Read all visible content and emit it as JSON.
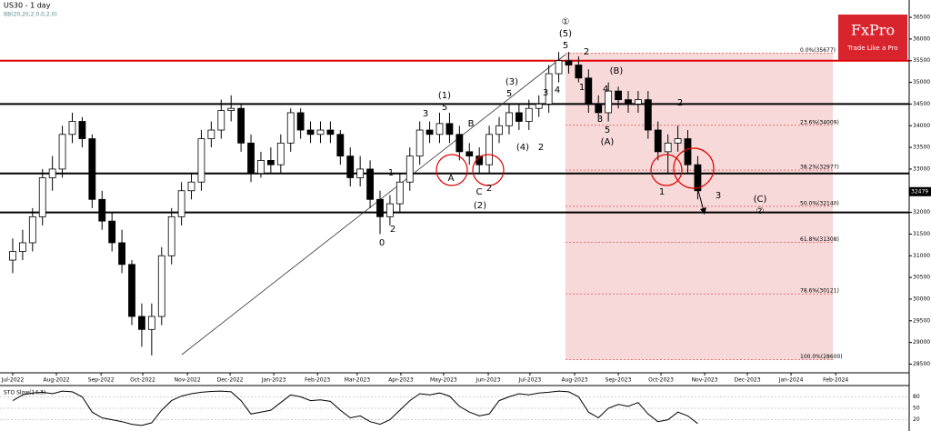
{
  "chart_data": {
    "type": "candlestick",
    "title": "US30 - 1 day",
    "indicator_label": "BB(20,20,2.0,0,2.0)",
    "brand": "FxPro",
    "brand_tagline": "Trade Like a Pro",
    "xlim": [
      -1.28,
      90.3
    ],
    "xticks": [
      {
        "value": 0,
        "label": "Jul-2022"
      },
      {
        "value": 4.4,
        "label": "Aug-2022"
      },
      {
        "value": 8.9,
        "label": "Sep-2022"
      },
      {
        "value": 13.1,
        "label": "Oct-2022"
      },
      {
        "value": 17.6,
        "label": "Nov-2022"
      },
      {
        "value": 21.9,
        "label": "Dec-2022"
      },
      {
        "value": 26.3,
        "label": "Jan-2023"
      },
      {
        "value": 30.7,
        "label": "Feb-2023"
      },
      {
        "value": 34.7,
        "label": "Mar-2023"
      },
      {
        "value": 39.1,
        "label": "Apr-2023"
      },
      {
        "value": 43.4,
        "label": "May-2023"
      },
      {
        "value": 47.9,
        "label": "Jun-2023"
      },
      {
        "value": 52.1,
        "label": "Jul-2023"
      },
      {
        "value": 56.6,
        "label": "Aug-2023"
      },
      {
        "value": 61,
        "label": "Sep-2023"
      },
      {
        "value": 65.3,
        "label": "Oct-2023"
      },
      {
        "value": 69.7,
        "label": "Nov-2023"
      },
      {
        "value": 74,
        "label": "Dec-2023"
      },
      {
        "value": 78.4,
        "label": "Jan-2024"
      },
      {
        "value": 82.9,
        "label": "Feb-2024"
      }
    ],
    "ylim": [
      28300,
      36900
    ],
    "yticks": [
      28500,
      29000,
      29500,
      30000,
      30500,
      31000,
      31500,
      32000,
      32500,
      33000,
      33500,
      34000,
      34500,
      35000,
      35500,
      36000,
      36500
    ],
    "last_price": 32479,
    "open": [
      30900,
      31100,
      31300,
      31900,
      32800,
      33000,
      33800,
      34100,
      33700,
      32300,
      31800,
      31300,
      30800,
      29600,
      29300,
      29600,
      31000,
      31900,
      32500,
      32700,
      33700,
      33900,
      34350,
      34400,
      33600,
      32900,
      33200,
      33100,
      33600,
      34300,
      33900,
      33800,
      33900,
      33800,
      33300,
      32800,
      33000,
      32300,
      31900,
      32200,
      32700,
      33300,
      33900,
      33800,
      34050,
      33800,
      33400,
      33300,
      33100,
      33800,
      34000,
      34300,
      34100,
      34400,
      34500,
      35200,
      35500,
      35400,
      35100,
      34500,
      34300,
      34800,
      34600,
      34500,
      34600,
      33900,
      33400,
      33600,
      33700,
      33100
    ],
    "high": [
      31400,
      31600,
      32100,
      33000,
      33300,
      34000,
      34300,
      34200,
      33800,
      32500,
      32000,
      31600,
      30900,
      29900,
      29900,
      31200,
      32100,
      32700,
      32900,
      33900,
      34100,
      34600,
      34700,
      34500,
      33800,
      33400,
      33500,
      33800,
      34400,
      34400,
      34100,
      34100,
      34100,
      33900,
      33500,
      33300,
      33200,
      32500,
      32400,
      32900,
      33500,
      34100,
      34100,
      34300,
      34300,
      34000,
      33600,
      33500,
      34000,
      34200,
      34500,
      34500,
      34600,
      34700,
      35400,
      35700,
      35700,
      35600,
      35300,
      34700,
      35000,
      34900,
      34800,
      34800,
      34800,
      34100,
      33800,
      34000,
      33900,
      33300
    ],
    "low": [
      30600,
      30900,
      31100,
      31700,
      32500,
      32800,
      33600,
      33500,
      32100,
      31600,
      31100,
      30600,
      29400,
      28900,
      28700,
      29400,
      30800,
      31700,
      32300,
      32500,
      33500,
      33700,
      34100,
      33400,
      32700,
      32800,
      32900,
      32900,
      33400,
      33700,
      33600,
      33600,
      33600,
      33100,
      32600,
      32600,
      32100,
      31500,
      31700,
      32000,
      32500,
      33100,
      33600,
      33600,
      33600,
      33200,
      33100,
      32900,
      32900,
      33600,
      33800,
      33900,
      33900,
      34200,
      34300,
      35000,
      35200,
      35000,
      34300,
      34100,
      34100,
      34400,
      34300,
      34300,
      33700,
      33200,
      32900,
      33400,
      32900,
      32300
    ],
    "close": [
      31100,
      31300,
      31900,
      32800,
      33000,
      33800,
      34100,
      33700,
      32300,
      31800,
      31300,
      30800,
      29600,
      29300,
      29600,
      31000,
      31900,
      32500,
      32700,
      33700,
      33900,
      34350,
      34400,
      33600,
      32900,
      33200,
      33100,
      33600,
      34300,
      33900,
      33800,
      33900,
      33800,
      33300,
      32800,
      33000,
      32300,
      31900,
      32200,
      32700,
      33300,
      33900,
      33800,
      34050,
      33800,
      33400,
      33300,
      33100,
      33800,
      34000,
      34300,
      34100,
      34400,
      34500,
      35200,
      35500,
      35400,
      35100,
      34500,
      34300,
      34800,
      34600,
      34500,
      34600,
      33900,
      33400,
      33600,
      33700,
      33100,
      32500
    ],
    "levels": [
      {
        "value": 35500,
        "color": "#e00000"
      },
      {
        "value": 34500,
        "color": "#000000"
      },
      {
        "value": 32900,
        "color": "#000000"
      },
      {
        "value": 32000,
        "color": "#000000"
      }
    ],
    "fib_levels": [
      {
        "value": 35677,
        "label": "0.0%(35677)"
      },
      {
        "value": 34009,
        "label": "23.6%(34009)"
      },
      {
        "value": 32977,
        "label": "38.2%(32977)"
      },
      {
        "value": 32140,
        "label": "50.0%(32140)"
      },
      {
        "value": 31308,
        "label": "61.8%(31308)"
      },
      {
        "value": 30121,
        "label": "78.6%(30121)"
      },
      {
        "value": 28600,
        "label": "100.0%(28600)"
      }
    ],
    "wave_labels": [
      "①",
      "(5)",
      "5",
      "2",
      "(B)",
      "1",
      "4",
      "3",
      "5",
      "(A)",
      "(1)",
      "5",
      "3",
      "(3)",
      "5",
      "3",
      "4",
      "(4)",
      "2",
      "B",
      "A",
      "C",
      "2",
      "(2)",
      "1",
      "0",
      "2",
      "1",
      "3",
      "(C)",
      "②",
      "2"
    ],
    "oscillator": {
      "title": "STO Slow(14,3)",
      "ylim": [
        0,
        100
      ],
      "yticks": [
        20,
        50,
        80
      ],
      "color": "#000000",
      "values": [
        70,
        85,
        90,
        92,
        88,
        95,
        93,
        80,
        40,
        25,
        20,
        15,
        8,
        5,
        12,
        45,
        70,
        82,
        88,
        92,
        94,
        95,
        93,
        70,
        35,
        40,
        45,
        65,
        85,
        80,
        70,
        72,
        68,
        45,
        25,
        30,
        15,
        8,
        20,
        45,
        70,
        88,
        85,
        90,
        82,
        55,
        40,
        30,
        35,
        70,
        80,
        88,
        85,
        90,
        92,
        95,
        93,
        80,
        40,
        25,
        50,
        60,
        55,
        65,
        35,
        15,
        20,
        40,
        30,
        10
      ]
    }
  }
}
